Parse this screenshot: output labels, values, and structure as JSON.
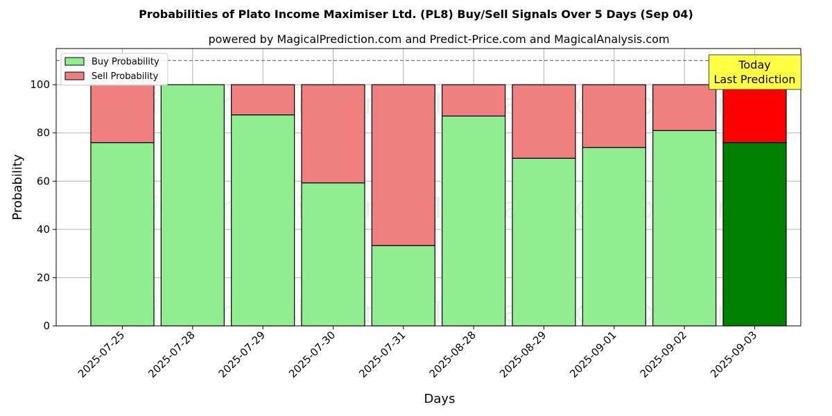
{
  "chart_data": {
    "type": "bar",
    "stacked": true,
    "title": "Probabilities of Plato Income Maximiser Ltd. (PL8) Buy/Sell Signals Over 5 Days (Sep 04)",
    "subtitle": "powered by MagicalPrediction.com and Predict-Price.com and MagicalAnalysis.com",
    "xlabel": "Days",
    "ylabel": "Probability",
    "ylim": [
      0,
      115
    ],
    "yticks": [
      0,
      20,
      40,
      60,
      80,
      100
    ],
    "grid": true,
    "legend_position": "top-left",
    "reference_line": 110,
    "categories": [
      "2025-07-25",
      "2025-07-28",
      "2025-07-29",
      "2025-07-30",
      "2025-07-31",
      "2025-08-28",
      "2025-08-29",
      "2025-09-01",
      "2025-09-02",
      "2025-09-03"
    ],
    "series": [
      {
        "name": "Buy Probability",
        "color": "#90ee90",
        "values": [
          76,
          100,
          87.5,
          59.3,
          33.3,
          87,
          69.5,
          74,
          81,
          76
        ]
      },
      {
        "name": "Sell Probability",
        "color": "#f08080",
        "values": [
          24,
          0,
          12.5,
          40.7,
          66.7,
          13,
          30.5,
          26,
          19,
          24
        ]
      }
    ],
    "highlight": {
      "index": 9,
      "buy_color": "#008000",
      "sell_color": "#ff0000"
    },
    "annotation": {
      "lines": [
        "Today",
        "Last Prediction"
      ],
      "color": "#ffff44"
    },
    "watermarks": [
      "MagicalAnalysis.com",
      "MagicalPrediction.com"
    ]
  }
}
